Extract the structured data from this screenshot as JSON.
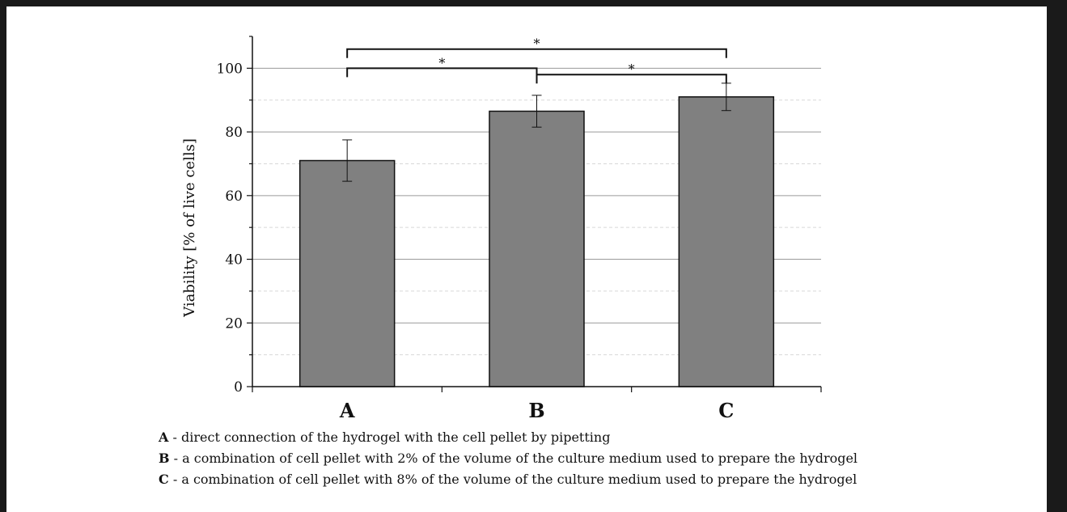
{
  "chart_data": {
    "type": "bar",
    "categories": [
      "A",
      "B",
      "C"
    ],
    "values": [
      71,
      86.5,
      91
    ],
    "errors": [
      6.5,
      5,
      4.3
    ],
    "ylabel": "Viability [% of live cells]",
    "xlabel": "",
    "ylim": [
      0,
      110
    ],
    "yticks": [
      0,
      20,
      40,
      60,
      80,
      100
    ],
    "grid": true,
    "bar_color": "#808080",
    "significance": [
      {
        "from": "A",
        "to": "C",
        "label": "*",
        "y": 106
      },
      {
        "from": "A",
        "to": "B",
        "label": "*",
        "y": 100
      },
      {
        "from": "B",
        "to": "C",
        "label": "*",
        "y": 98
      }
    ]
  },
  "legend": [
    {
      "key": "A",
      "text": " - direct connection of the hydrogel with the cell pellet by pipetting"
    },
    {
      "key": "B",
      "text": " - a combination of cell pellet with 2% of the volume of the culture medium used to prepare the hydrogel"
    },
    {
      "key": "C",
      "text": " - a combination of cell pellet with 8% of the volume of the culture medium used to prepare the hydrogel"
    }
  ]
}
